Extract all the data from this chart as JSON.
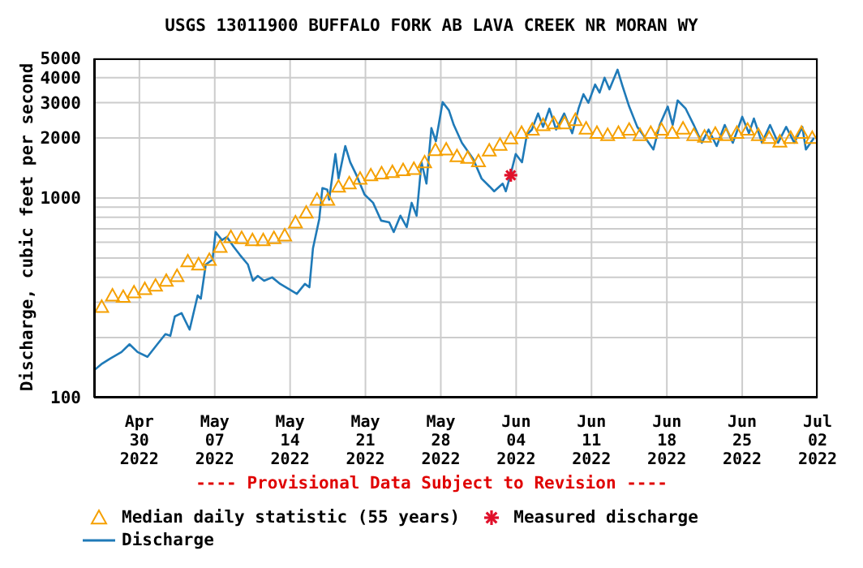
{
  "chart_data": {
    "type": "line",
    "title": "USGS 13011900 BUFFALO FORK AB LAVA CREEK NR MORAN WY",
    "ylabel": "Discharge, cubic feet per second",
    "annotations": [
      "---- Provisional Data Subject to Revision ----"
    ],
    "log": "y",
    "grid": true,
    "legend": "bottom",
    "xlim": [
      "2022-04-25T19:00",
      "2022-07-02"
    ],
    "xticks": [
      {
        "value": "2022-04-30",
        "label": "Apr 30 2022"
      },
      {
        "value": "2022-05-07",
        "label": "May 07 2022"
      },
      {
        "value": "2022-05-14",
        "label": "May 14 2022"
      },
      {
        "value": "2022-05-21",
        "label": "May 21 2022"
      },
      {
        "value": "2022-05-28",
        "label": "May 28 2022"
      },
      {
        "value": "2022-06-04",
        "label": "Jun 04 2022"
      },
      {
        "value": "2022-06-11",
        "label": "Jun 11 2022"
      },
      {
        "value": "2022-06-18",
        "label": "Jun 18 2022"
      },
      {
        "value": "2022-06-25",
        "label": "Jun 25 2022"
      },
      {
        "value": "2022-07-02",
        "label": "Jul 02 2022"
      }
    ],
    "ylim": [
      100,
      5000
    ],
    "yticks": [
      100,
      {
        "value": 200,
        "label": null
      },
      {
        "value": 300,
        "label": null
      },
      {
        "value": 400,
        "label": null
      },
      {
        "value": 500,
        "label": null
      },
      {
        "value": 600,
        "label": null
      },
      {
        "value": 700,
        "label": null
      },
      {
        "value": 800,
        "label": null
      },
      {
        "value": 900,
        "label": null
      },
      1000,
      2000,
      3000,
      4000,
      5000
    ],
    "series": [
      {
        "name": "Median daily statistic (55 years)",
        "type": "scatter",
        "marker": "triangle",
        "color": "#f5a000",
        "x": [
          "2022-04-26T12:00",
          "2022-04-27T12:00",
          "2022-04-28T12:00",
          "2022-04-29T12:00",
          "2022-04-30T12:00",
          "2022-05-01T12:00",
          "2022-05-02T12:00",
          "2022-05-03T12:00",
          "2022-05-04T12:00",
          "2022-05-05T12:00",
          "2022-05-06T12:00",
          "2022-05-07T12:00",
          "2022-05-08T12:00",
          "2022-05-09T12:00",
          "2022-05-10T12:00",
          "2022-05-11T12:00",
          "2022-05-12T12:00",
          "2022-05-13T12:00",
          "2022-05-14T12:00",
          "2022-05-15T12:00",
          "2022-05-16T12:00",
          "2022-05-17T12:00",
          "2022-05-18T12:00",
          "2022-05-19T12:00",
          "2022-05-20T12:00",
          "2022-05-21T12:00",
          "2022-05-22T12:00",
          "2022-05-23T12:00",
          "2022-05-24T12:00",
          "2022-05-25T12:00",
          "2022-05-26T12:00",
          "2022-05-27T12:00",
          "2022-05-28T12:00",
          "2022-05-29T12:00",
          "2022-05-30T12:00",
          "2022-05-31T12:00",
          "2022-06-01T12:00",
          "2022-06-02T12:00",
          "2022-06-03T12:00",
          "2022-06-04T12:00",
          "2022-06-05T12:00",
          "2022-06-06T12:00",
          "2022-06-07T12:00",
          "2022-06-08T12:00",
          "2022-06-09T12:00",
          "2022-06-10T12:00",
          "2022-06-11T12:00",
          "2022-06-12T12:00",
          "2022-06-13T12:00",
          "2022-06-14T12:00",
          "2022-06-15T12:00",
          "2022-06-16T12:00",
          "2022-06-17T12:00",
          "2022-06-18T12:00",
          "2022-06-19T12:00",
          "2022-06-20T12:00",
          "2022-06-21T12:00",
          "2022-06-22T12:00",
          "2022-06-23T12:00",
          "2022-06-24T12:00",
          "2022-06-25T12:00",
          "2022-06-26T12:00",
          "2022-06-27T12:00",
          "2022-06-28T12:00",
          "2022-06-29T12:00",
          "2022-06-30T12:00",
          "2022-07-01T12:00"
        ],
        "values": [
          285,
          325,
          320,
          337,
          350,
          364,
          385,
          407,
          482,
          465,
          490,
          570,
          638,
          630,
          615,
          615,
          630,
          650,
          755,
          845,
          980,
          980,
          1140,
          1185,
          1250,
          1300,
          1330,
          1350,
          1380,
          1400,
          1510,
          1740,
          1750,
          1620,
          1590,
          1530,
          1730,
          1850,
          1990,
          2120,
          2200,
          2320,
          2370,
          2370,
          2460,
          2230,
          2120,
          2070,
          2120,
          2200,
          2070,
          2120,
          2200,
          2120,
          2230,
          2070,
          2030,
          2100,
          2070,
          2120,
          2200,
          2070,
          2000,
          1920,
          2000,
          2120,
          2000
        ]
      },
      {
        "name": "Measured discharge",
        "type": "scatter",
        "marker": "cross",
        "color": "#e0102a",
        "x": [
          "2022-06-03T12:00"
        ],
        "values": [
          1300
        ]
      },
      {
        "name": "Discharge",
        "marker": "none",
        "color": "#1f7ab8",
        "x": [
          "2022-04-25T19:00",
          "2022-04-26T13:00",
          "2022-04-27T07:00",
          "2022-04-28T08:00",
          "2022-04-29T02:00",
          "2022-04-29T20:00",
          "2022-04-30T18:00",
          "2022-05-01T16:00",
          "2022-05-02T10:00",
          "2022-05-02T21:00",
          "2022-05-03T07:00",
          "2022-05-03T22:00",
          "2022-05-04T16:00",
          "2022-05-05T10:00",
          "2022-05-05T17:00",
          "2022-05-06T04:00",
          "2022-05-06T19:00",
          "2022-05-07T02:00",
          "2022-05-07T16:00",
          "2022-05-08T03:00",
          "2022-05-08T18:00",
          "2022-05-09T08:00",
          "2022-05-10T02:00",
          "2022-05-10T13:00",
          "2022-05-11T00:00",
          "2022-05-11T14:00",
          "2022-05-12T08:00",
          "2022-05-13T02:00",
          "2022-05-13T21:00",
          "2022-05-14T15:00",
          "2022-05-15T09:00",
          "2022-05-15T19:00",
          "2022-05-16T03:00",
          "2022-05-16T17:00",
          "2022-05-17T00:00",
          "2022-05-17T11:00",
          "2022-05-17T15:00",
          "2022-05-18T05:00",
          "2022-05-18T12:00",
          "2022-05-19T03:00",
          "2022-05-19T14:00",
          "2022-05-20T04:00",
          "2022-05-20T22:00",
          "2022-05-21T17:00",
          "2022-05-22T11:00",
          "2022-05-23T05:00",
          "2022-05-23T15:00",
          "2022-05-24T06:00",
          "2022-05-24T20:00",
          "2022-05-25T07:00",
          "2022-05-25T18:00",
          "2022-05-26T05:00",
          "2022-05-26T16:00",
          "2022-05-27T03:00",
          "2022-05-27T13:00",
          "2022-05-28T04:00",
          "2022-05-28T18:00",
          "2022-05-29T05:00",
          "2022-05-29T23:00",
          "2022-05-31T00:00",
          "2022-05-31T19:00",
          "2022-06-01T13:00",
          "2022-06-01T23:00",
          "2022-06-02T18:00",
          "2022-06-03T01:00",
          "2022-06-03T12:00",
          "2022-06-03T23:00",
          "2022-06-04T13:00",
          "2022-06-05T00:00",
          "2022-06-05T11:00",
          "2022-06-06T01:00",
          "2022-06-06T12:00",
          "2022-06-07T02:00",
          "2022-06-07T17:00",
          "2022-06-08T11:00",
          "2022-06-09T05:00",
          "2022-06-09T19:00",
          "2022-06-10T06:00",
          "2022-06-10T17:00",
          "2022-06-11T08:00",
          "2022-06-11T18:00",
          "2022-06-12T05:00",
          "2022-06-12T16:00",
          "2022-06-13T10:00",
          "2022-06-13T21:00",
          "2022-06-14T12:00",
          "2022-06-15T06:00",
          "2022-06-16T00:00",
          "2022-06-16T18:00",
          "2022-06-17T08:00",
          "2022-06-18T02:00",
          "2022-06-18T13:00",
          "2022-06-19T00:00",
          "2022-06-19T18:00",
          "2022-06-20T12:00",
          "2022-06-21T06:00",
          "2022-06-21T21:00",
          "2022-06-22T15:00",
          "2022-06-23T09:00",
          "2022-06-24T03:00",
          "2022-06-25T00:00",
          "2022-06-25T15:00",
          "2022-06-26T02:00",
          "2022-06-26T20:00",
          "2022-06-27T14:00",
          "2022-06-28T08:00",
          "2022-06-29T02:00",
          "2022-06-29T20:00",
          "2022-06-30T14:00",
          "2022-06-30T22:00",
          "2022-07-01T16:00"
        ],
        "values": [
          137,
          148,
          157,
          169,
          185,
          169,
          160,
          185,
          208,
          204,
          255,
          265,
          219,
          325,
          313,
          464,
          491,
          675,
          615,
          638,
          570,
          519,
          464,
          385,
          407,
          385,
          400,
          371,
          350,
          331,
          371,
          357,
          560,
          784,
          1120,
          1100,
          980,
          1660,
          1250,
          1820,
          1510,
          1300,
          1040,
          946,
          770,
          755,
          675,
          815,
          714,
          946,
          815,
          1510,
          1180,
          2240,
          1925,
          3020,
          2750,
          2320,
          1890,
          1570,
          1250,
          1140,
          1080,
          1180,
          1080,
          1320,
          1660,
          1510,
          2080,
          2200,
          2650,
          2270,
          2800,
          2200,
          2650,
          2110,
          2800,
          3310,
          3000,
          3700,
          3370,
          4000,
          3500,
          4390,
          3640,
          2870,
          2270,
          2000,
          1750,
          2320,
          2870,
          2320,
          3080,
          2800,
          2320,
          1890,
          2200,
          1820,
          2320,
          1890,
          2550,
          2110,
          2500,
          1890,
          2320,
          1890,
          2270,
          1890,
          2270,
          1750,
          2000
        ]
      }
    ]
  }
}
